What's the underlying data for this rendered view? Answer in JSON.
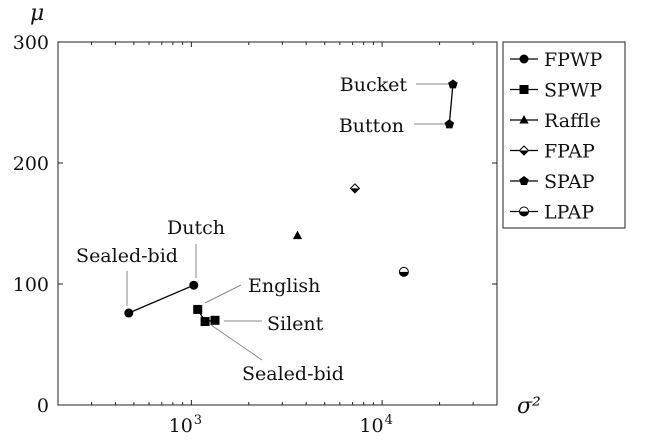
{
  "chart_data": {
    "type": "scatter",
    "xscale": "log",
    "xlabel": "σ²",
    "ylabel": "μ",
    "xlim": [
      200,
      40000
    ],
    "ylim": [
      0,
      300
    ],
    "grid": false,
    "legend_placement": "outside-right",
    "x_tick_labels": [
      {
        "value": 1000,
        "base": "10",
        "exp": "3"
      },
      {
        "value": 10000,
        "base": "10",
        "exp": "4"
      }
    ],
    "y_ticks": [
      0,
      100,
      200,
      300
    ],
    "series": [
      {
        "name": "FPWP",
        "marker": "circle",
        "points": [
          {
            "x": 470,
            "y": 76
          },
          {
            "x": 1030,
            "y": 99
          }
        ],
        "connected": true
      },
      {
        "name": "SPWP",
        "marker": "square",
        "points": [
          {
            "x": 1080,
            "y": 79
          },
          {
            "x": 1180,
            "y": 69
          },
          {
            "x": 1330,
            "y": 70
          }
        ],
        "connected": true
      },
      {
        "name": "Raffle",
        "marker": "triangle",
        "points": [
          {
            "x": 3600,
            "y": 140
          }
        ],
        "connected": false
      },
      {
        "name": "FPAP",
        "marker": "diamond-half",
        "points": [
          {
            "x": 7200,
            "y": 179
          }
        ],
        "connected": false
      },
      {
        "name": "SPAP",
        "marker": "pentagon",
        "points": [
          {
            "x": 22500,
            "y": 232
          },
          {
            "x": 23500,
            "y": 265
          }
        ],
        "connected": true
      },
      {
        "name": "LPAP",
        "marker": "circle-half",
        "points": [
          {
            "x": 13000,
            "y": 110
          }
        ],
        "connected": false
      }
    ],
    "annotations": [
      {
        "text": "Sealed-bid",
        "x": 470,
        "y": 76
      },
      {
        "text": "Dutch",
        "x": 1030,
        "y": 99
      },
      {
        "text": "English",
        "x": 1080,
        "y": 79
      },
      {
        "text": "Silent",
        "x": 1330,
        "y": 70
      },
      {
        "text": "Sealed-bid",
        "x": 1180,
        "y": 69
      },
      {
        "text": "Bucket",
        "x": 23500,
        "y": 265
      },
      {
        "text": "Button",
        "x": 22500,
        "y": 232
      }
    ]
  }
}
